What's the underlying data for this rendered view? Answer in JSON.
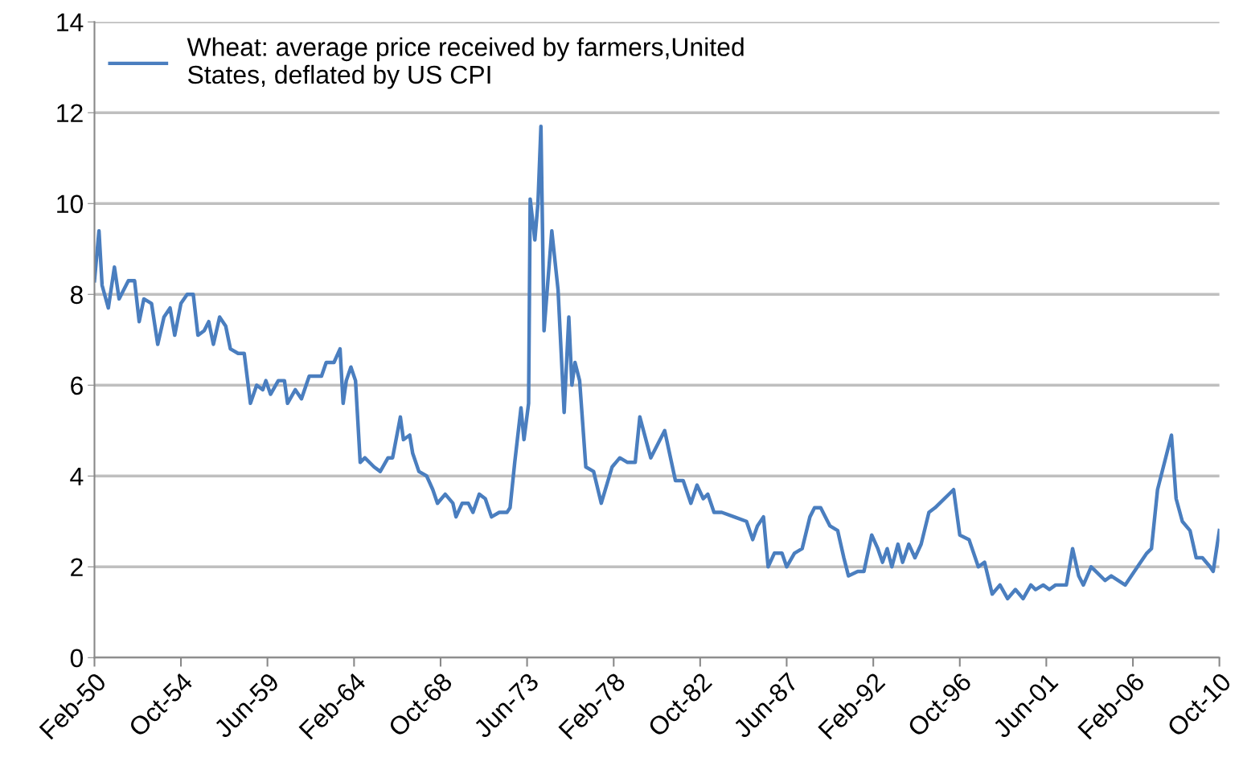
{
  "chart_data": {
    "type": "line",
    "legend": "top left",
    "grid": "y",
    "line_style": "solid",
    "marker": "none",
    "xlim": [
      "1950-02",
      "2010-10"
    ],
    "ylim": [
      0,
      14
    ],
    "yticks": [
      0,
      2,
      4,
      6,
      8,
      10,
      12,
      14
    ],
    "xticks": [
      {
        "value": "1950-02",
        "label": "Feb-50"
      },
      {
        "value": "1954-10",
        "label": "Oct-54"
      },
      {
        "value": "1959-06",
        "label": "Jun-59"
      },
      {
        "value": "1964-02",
        "label": "Feb-64"
      },
      {
        "value": "1968-10",
        "label": "Oct-68"
      },
      {
        "value": "1973-06",
        "label": "Jun-73"
      },
      {
        "value": "1978-02",
        "label": "Feb-78"
      },
      {
        "value": "1982-10",
        "label": "Oct-82"
      },
      {
        "value": "1987-06",
        "label": "Jun-87"
      },
      {
        "value": "1992-02",
        "label": "Feb-92"
      },
      {
        "value": "1996-10",
        "label": "Oct-96"
      },
      {
        "value": "2001-06",
        "label": "Jun-01"
      },
      {
        "value": "2006-02",
        "label": "Feb-06"
      },
      {
        "value": "2010-10",
        "label": "Oct-10"
      }
    ],
    "x": [
      "1950-02",
      "1950-05",
      "1950-07",
      "1950-11",
      "1951-03",
      "1951-06",
      "1951-12",
      "1952-04",
      "1952-07",
      "1952-10",
      "1953-03",
      "1953-07",
      "1953-11",
      "1954-03",
      "1954-06",
      "1954-10",
      "1955-02",
      "1955-06",
      "1955-09",
      "1956-01",
      "1956-04",
      "1956-07",
      "1956-11",
      "1957-03",
      "1957-06",
      "1957-11",
      "1958-03",
      "1958-07",
      "1958-11",
      "1959-03",
      "1959-05",
      "1959-08",
      "1960-01",
      "1960-05",
      "1960-07",
      "1960-12",
      "1961-04",
      "1961-09",
      "1961-12",
      "1962-05",
      "1962-08",
      "1963-01",
      "1963-05",
      "1963-07",
      "1963-09",
      "1963-12",
      "1964-03",
      "1964-06",
      "1964-09",
      "1965-03",
      "1965-07",
      "1965-12",
      "1966-03",
      "1966-08",
      "1966-10",
      "1967-02",
      "1967-04",
      "1967-08",
      "1968-01",
      "1968-05",
      "1968-08",
      "1969-01",
      "1969-06",
      "1969-08",
      "1969-12",
      "1970-04",
      "1970-07",
      "1970-11",
      "1971-03",
      "1971-07",
      "1971-12",
      "1972-05",
      "1972-07",
      "1972-10",
      "1973-02",
      "1973-04",
      "1973-07",
      "1973-08",
      "1973-11",
      "1974-01",
      "1974-03",
      "1974-05",
      "1974-10",
      "1975-02",
      "1975-06",
      "1975-09",
      "1975-11",
      "1976-01",
      "1976-04",
      "1976-08",
      "1977-01",
      "1977-06",
      "1978-01",
      "1978-06",
      "1978-11",
      "1979-04",
      "1979-07",
      "1980-02",
      "1980-11",
      "1981-06",
      "1981-11",
      "1982-04",
      "1982-08",
      "1982-12",
      "1983-03",
      "1983-07",
      "1983-12",
      "1984-08",
      "1985-04",
      "1985-08",
      "1985-11",
      "1986-03",
      "1986-06",
      "1986-10",
      "1987-03",
      "1987-06",
      "1987-11",
      "1988-04",
      "1988-09",
      "1988-12",
      "1989-04",
      "1989-10",
      "1990-03",
      "1990-07",
      "1990-10",
      "1991-04",
      "1991-08",
      "1992-01",
      "1992-05",
      "1992-08",
      "1992-11",
      "1993-02",
      "1993-06",
      "1993-09",
      "1994-01",
      "1994-05",
      "1994-09",
      "1995-02",
      "1995-06",
      "1996-06",
      "1996-10",
      "1997-04",
      "1997-10",
      "1998-02",
      "1998-07",
      "1998-12",
      "1999-05",
      "1999-10",
      "2000-03",
      "2000-08",
      "2000-11",
      "2001-04",
      "2001-08",
      "2001-12",
      "2002-04",
      "2002-07",
      "2002-11",
      "2003-03",
      "2003-06",
      "2003-11",
      "2004-02",
      "2004-08",
      "2004-12",
      "2005-09",
      "2006-03",
      "2006-11",
      "2007-02",
      "2007-06",
      "2008-03",
      "2008-06",
      "2008-10",
      "2009-03",
      "2009-07",
      "2009-11",
      "2010-04",
      "2010-06",
      "2010-10"
    ],
    "series": [
      {
        "name": "Wheat: average price received by farmers,United\nStates, deflated by US CPI",
        "color": "#4a7ebf",
        "values": [
          8.3,
          9.4,
          8.2,
          7.7,
          8.6,
          7.9,
          8.3,
          8.3,
          7.4,
          7.9,
          7.8,
          6.9,
          7.5,
          7.7,
          7.1,
          7.8,
          8.0,
          8.0,
          7.1,
          7.2,
          7.4,
          6.9,
          7.5,
          7.3,
          6.8,
          6.7,
          6.7,
          5.6,
          6.0,
          5.9,
          6.1,
          5.8,
          6.1,
          6.1,
          5.6,
          5.9,
          5.7,
          6.2,
          6.2,
          6.2,
          6.5,
          6.5,
          6.8,
          5.6,
          6.1,
          6.4,
          6.1,
          4.3,
          4.4,
          4.2,
          4.1,
          4.4,
          4.4,
          5.3,
          4.8,
          4.9,
          4.5,
          4.1,
          4.0,
          3.7,
          3.4,
          3.6,
          3.4,
          3.1,
          3.4,
          3.4,
          3.2,
          3.6,
          3.5,
          3.1,
          3.2,
          3.2,
          3.3,
          4.3,
          5.5,
          4.8,
          5.6,
          10.1,
          9.2,
          10.0,
          11.7,
          7.2,
          9.4,
          8.1,
          5.4,
          7.5,
          6.0,
          6.5,
          6.1,
          4.2,
          4.1,
          3.4,
          4.2,
          4.4,
          4.3,
          4.3,
          5.3,
          4.4,
          5.0,
          3.9,
          3.9,
          3.4,
          3.8,
          3.5,
          3.6,
          3.2,
          3.2,
          3.1,
          3.0,
          2.6,
          2.9,
          3.1,
          2.0,
          2.3,
          2.3,
          2.0,
          2.3,
          2.4,
          3.1,
          3.3,
          3.3,
          2.9,
          2.8,
          2.2,
          1.8,
          1.9,
          1.9,
          2.7,
          2.4,
          2.1,
          2.4,
          2.0,
          2.5,
          2.1,
          2.5,
          2.2,
          2.5,
          3.2,
          3.3,
          3.7,
          2.7,
          2.6,
          2.0,
          2.1,
          1.4,
          1.6,
          1.3,
          1.5,
          1.3,
          1.6,
          1.5,
          1.6,
          1.5,
          1.6,
          1.6,
          1.6,
          2.4,
          1.8,
          1.6,
          2.0,
          1.9,
          1.7,
          1.8,
          1.6,
          1.9,
          2.3,
          2.4,
          3.7,
          4.9,
          3.5,
          3.0,
          2.8,
          2.2,
          2.2,
          2.0,
          1.9,
          2.8
        ]
      }
    ]
  }
}
